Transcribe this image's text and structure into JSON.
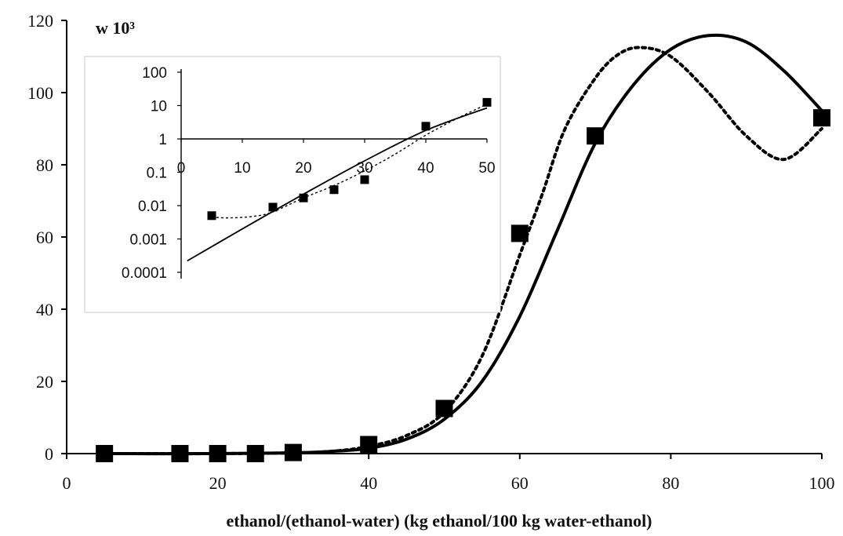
{
  "chart_data": [
    {
      "type": "scatter",
      "role": "main",
      "xlabel": "ethanol/(ethanol-water) (kg ethanol/100 kg water-ethanol)",
      "ylabel": "w 10³",
      "xlim": [
        0,
        100
      ],
      "ylim": [
        0,
        120
      ],
      "x_ticks": [
        0,
        20,
        40,
        60,
        80,
        100
      ],
      "y_ticks": [
        0,
        20,
        40,
        60,
        80,
        100,
        120
      ],
      "grid": false,
      "series": [
        {
          "style": "markers",
          "marker": "square",
          "color": "#000000",
          "points": [
            [
              5,
              0
            ],
            [
              15,
              0
            ],
            [
              20,
              0
            ],
            [
              25,
              0
            ],
            [
              30,
              0.3
            ],
            [
              40,
              2.5
            ],
            [
              50,
              12.5
            ],
            [
              60,
              61
            ],
            [
              70,
              88
            ],
            [
              100,
              93
            ]
          ]
        },
        {
          "style": "solid-line",
          "color": "#000000",
          "points": [
            [
              5,
              0
            ],
            [
              20,
              0
            ],
            [
              30,
              0.2
            ],
            [
              35,
              0.6
            ],
            [
              40,
              1.5
            ],
            [
              45,
              4
            ],
            [
              50,
              9.5
            ],
            [
              55,
              20
            ],
            [
              60,
              38
            ],
            [
              65,
              62
            ],
            [
              70,
              86
            ],
            [
              75,
              102
            ],
            [
              80,
              112
            ],
            [
              85,
              115.8
            ],
            [
              90,
              114
            ],
            [
              95,
              106
            ],
            [
              100,
              95
            ]
          ]
        },
        {
          "style": "dotted-line",
          "color": "#000000",
          "points": [
            [
              5,
              0
            ],
            [
              20,
              0
            ],
            [
              30,
              0.2
            ],
            [
              35,
              0.6
            ],
            [
              40,
              2
            ],
            [
              45,
              5
            ],
            [
              50,
              11.5
            ],
            [
              55,
              27
            ],
            [
              60,
              55
            ],
            [
              63,
              72
            ],
            [
              66,
              90
            ],
            [
              70,
              104
            ],
            [
              73,
              110.5
            ],
            [
              76,
              112.5
            ],
            [
              80,
              110
            ],
            [
              85,
              100
            ],
            [
              90,
              88
            ],
            [
              95,
              81.5
            ],
            [
              100,
              90
            ]
          ]
        }
      ]
    },
    {
      "type": "scatter",
      "role": "inset",
      "xlim": [
        0,
        50
      ],
      "y_scale": "log",
      "ylim": [
        0.0001,
        100
      ],
      "x_ticks": [
        0,
        10,
        20,
        30,
        40,
        50
      ],
      "y_tick_labels": [
        "100",
        "10",
        "1",
        "0.1",
        "0.01",
        "0.001",
        "0.0001"
      ],
      "y_tick_values": [
        100,
        10,
        1,
        0.1,
        0.01,
        0.001,
        0.0001
      ],
      "grid": false,
      "series": [
        {
          "style": "markers",
          "marker": "square",
          "color": "#000000",
          "points": [
            [
              5,
              0.005
            ],
            [
              15,
              0.009
            ],
            [
              20,
              0.017
            ],
            [
              25,
              0.03
            ],
            [
              30,
              0.06
            ],
            [
              40,
              2.4
            ],
            [
              50,
              12.5
            ]
          ]
        },
        {
          "style": "solid-line",
          "color": "#000000",
          "points": [
            [
              1,
              0.00022
            ],
            [
              10,
              0.002
            ],
            [
              20,
              0.022
            ],
            [
              30,
              0.22
            ],
            [
              40,
              1.8
            ],
            [
              50,
              8.5
            ]
          ]
        },
        {
          "style": "dotted-line",
          "color": "#000000",
          "points": [
            [
              5,
              0.0045
            ],
            [
              8,
              0.0043
            ],
            [
              12,
              0.0048
            ],
            [
              15,
              0.0065
            ],
            [
              20,
              0.017
            ],
            [
              25,
              0.04
            ],
            [
              30,
              0.11
            ],
            [
              35,
              0.35
            ],
            [
              40,
              1.3
            ],
            [
              45,
              4
            ],
            [
              50,
              11
            ]
          ]
        }
      ]
    }
  ]
}
